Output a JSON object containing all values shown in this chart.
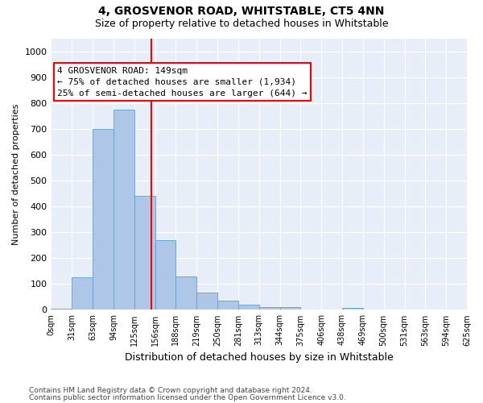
{
  "title": "4, GROSVENOR ROAD, WHITSTABLE, CT5 4NN",
  "subtitle": "Size of property relative to detached houses in Whitstable",
  "xlabel": "Distribution of detached houses by size in Whitstable",
  "ylabel": "Number of detached properties",
  "footer1": "Contains HM Land Registry data © Crown copyright and database right 2024.",
  "footer2": "Contains public sector information licensed under the Open Government Licence v3.0.",
  "bin_labels": [
    "0sqm",
    "31sqm",
    "63sqm",
    "94sqm",
    "125sqm",
    "156sqm",
    "188sqm",
    "219sqm",
    "250sqm",
    "281sqm",
    "313sqm",
    "344sqm",
    "375sqm",
    "406sqm",
    "438sqm",
    "469sqm",
    "500sqm",
    "531sqm",
    "563sqm",
    "594sqm",
    "625sqm"
  ],
  "bar_values": [
    5,
    125,
    700,
    775,
    440,
    270,
    130,
    68,
    35,
    20,
    10,
    10,
    0,
    0,
    8,
    0,
    0,
    0,
    0,
    0
  ],
  "bar_color": "#aec6e8",
  "bar_edge_color": "#5a9fd4",
  "vline_x": 4.84,
  "vline_color": "red",
  "annotation_text": "4 GROSVENOR ROAD: 149sqm\n← 75% of detached houses are smaller (1,934)\n25% of semi-detached houses are larger (644) →",
  "annotation_box_color": "red",
  "ylim": [
    0,
    1050
  ],
  "yticks": [
    0,
    100,
    200,
    300,
    400,
    500,
    600,
    700,
    800,
    900,
    1000
  ],
  "background_color": "#e8eef8",
  "grid_color": "#ffffff",
  "figsize": [
    6.0,
    5.0
  ],
  "dpi": 100
}
